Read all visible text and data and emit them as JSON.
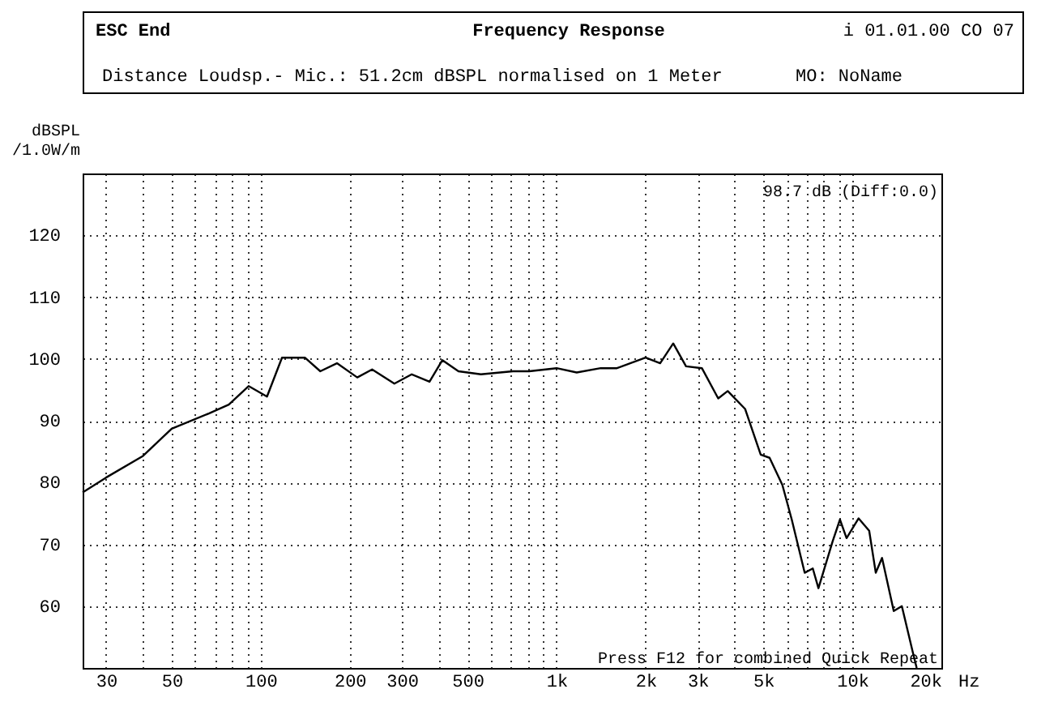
{
  "chart_data": {
    "type": "line",
    "title": "Frequency Response",
    "subtitle": "Distance Loudsp.- Mic.: 51.2cm dBSPL normalised on 1 Meter",
    "ylabel": "dBSPL\n/1.0W/m",
    "annotations": [
      "ESC End",
      "i 01.01.00 CO 07",
      "MO: NoName",
      "98.7 dB (Diff:0.0)",
      "Press F12 for combined Quick Repeat"
    ],
    "x": [
      25,
      30,
      40,
      50,
      67,
      78,
      91,
      105,
      118,
      141,
      159,
      181,
      212,
      238,
      283,
      324,
      372,
      411,
      466,
      555,
      712,
      808,
      1000,
      1170,
      1410,
      1600,
      2000,
      2240,
      2480,
      2740,
      3100,
      3520,
      3790,
      4340,
      4900,
      5250,
      5800,
      6240,
      6900,
      7350,
      7680,
      8580,
      9080,
      9560,
      10500,
      11400,
      12000,
      12600,
      13800,
      14700,
      16000,
      16500
    ],
    "series": [
      {
        "color": "#000000",
        "values": [
          78.4,
          80.8,
          84.3,
          88.7,
          91.2,
          92.6,
          95.6,
          93.9,
          100.2,
          100.2,
          98,
          99.3,
          97,
          98.3,
          96,
          97.5,
          96.3,
          99.8,
          98,
          97.5,
          98,
          98,
          98.5,
          97.8,
          98.5,
          98.5,
          100.2,
          99.3,
          102.5,
          98.8,
          98.5,
          93.6,
          94.8,
          91.9,
          84.5,
          84,
          79.6,
          74,
          65.4,
          66.1,
          62.9,
          70.5,
          74,
          71,
          74.2,
          72.2,
          65.4,
          67.8,
          59.2,
          60,
          52.6,
          50
        ]
      }
    ],
    "xlim": [
      25,
      20000
    ],
    "xticks": [
      30,
      {
        "value": 40,
        "label": null
      },
      50,
      {
        "value": 60,
        "label": null
      },
      {
        "value": 70,
        "label": null
      },
      {
        "value": 80,
        "label": null
      },
      {
        "value": 90,
        "label": null
      },
      100,
      200,
      300,
      {
        "value": 400,
        "label": null
      },
      500,
      {
        "value": 600,
        "label": null
      },
      {
        "value": 700,
        "label": null
      },
      {
        "value": 800,
        "label": null
      },
      {
        "value": 900,
        "label": null
      },
      {
        "value": 1000,
        "label": "1k"
      },
      {
        "value": 2000,
        "label": "2k"
      },
      {
        "value": 3000,
        "label": "3k"
      },
      {
        "value": 4000,
        "label": null
      },
      {
        "value": 5000,
        "label": "5k"
      },
      {
        "value": 6000,
        "label": null
      },
      {
        "value": 7000,
        "label": null
      },
      {
        "value": 8000,
        "label": null
      },
      {
        "value": 9000,
        "label": null
      },
      {
        "value": 10000,
        "label": "10k"
      },
      {
        "value": 20000,
        "label": "20k"
      }
    ],
    "xlabel": "Hz",
    "ylim": [
      50,
      130
    ],
    "yticks": [
      60,
      70,
      80,
      90,
      100,
      110,
      120
    ],
    "log": "x",
    "grid": true,
    "marker": "none",
    "line_style": "solid"
  }
}
